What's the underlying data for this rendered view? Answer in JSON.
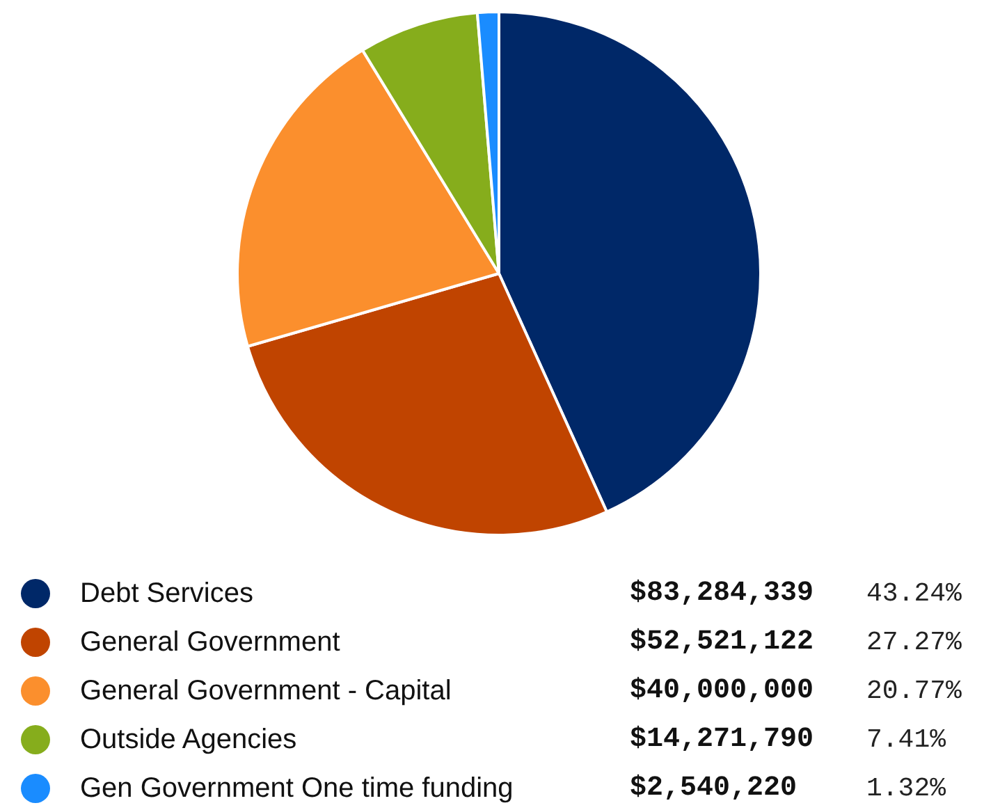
{
  "chart_data": {
    "type": "pie",
    "categories": [
      "Debt Services",
      "General Government",
      "General Government - Capital",
      "Outside Agencies",
      "Gen Government One time funding"
    ],
    "values": [
      83284339,
      52521122,
      40000000,
      14271790,
      2540220
    ],
    "colors": [
      "#002868",
      "#c04400",
      "#fb8f2d",
      "#86ad1c",
      "#1a8cff"
    ],
    "value_labels": [
      "$83,284,339",
      "$52,521,122",
      "$40,000,000",
      "$14,271,790",
      "$2,540,220"
    ],
    "annotations": [
      {
        "text": "43.24%",
        "x": "Debt Services"
      },
      {
        "text": "27.27%",
        "x": "General Government"
      },
      {
        "text": "20.77%",
        "x": "General Government - Capital"
      },
      {
        "text": "7.41%",
        "x": "Outside Agencies"
      },
      {
        "text": "1.32%",
        "x": "Gen Government One time funding"
      }
    ],
    "legend": "bottom"
  }
}
